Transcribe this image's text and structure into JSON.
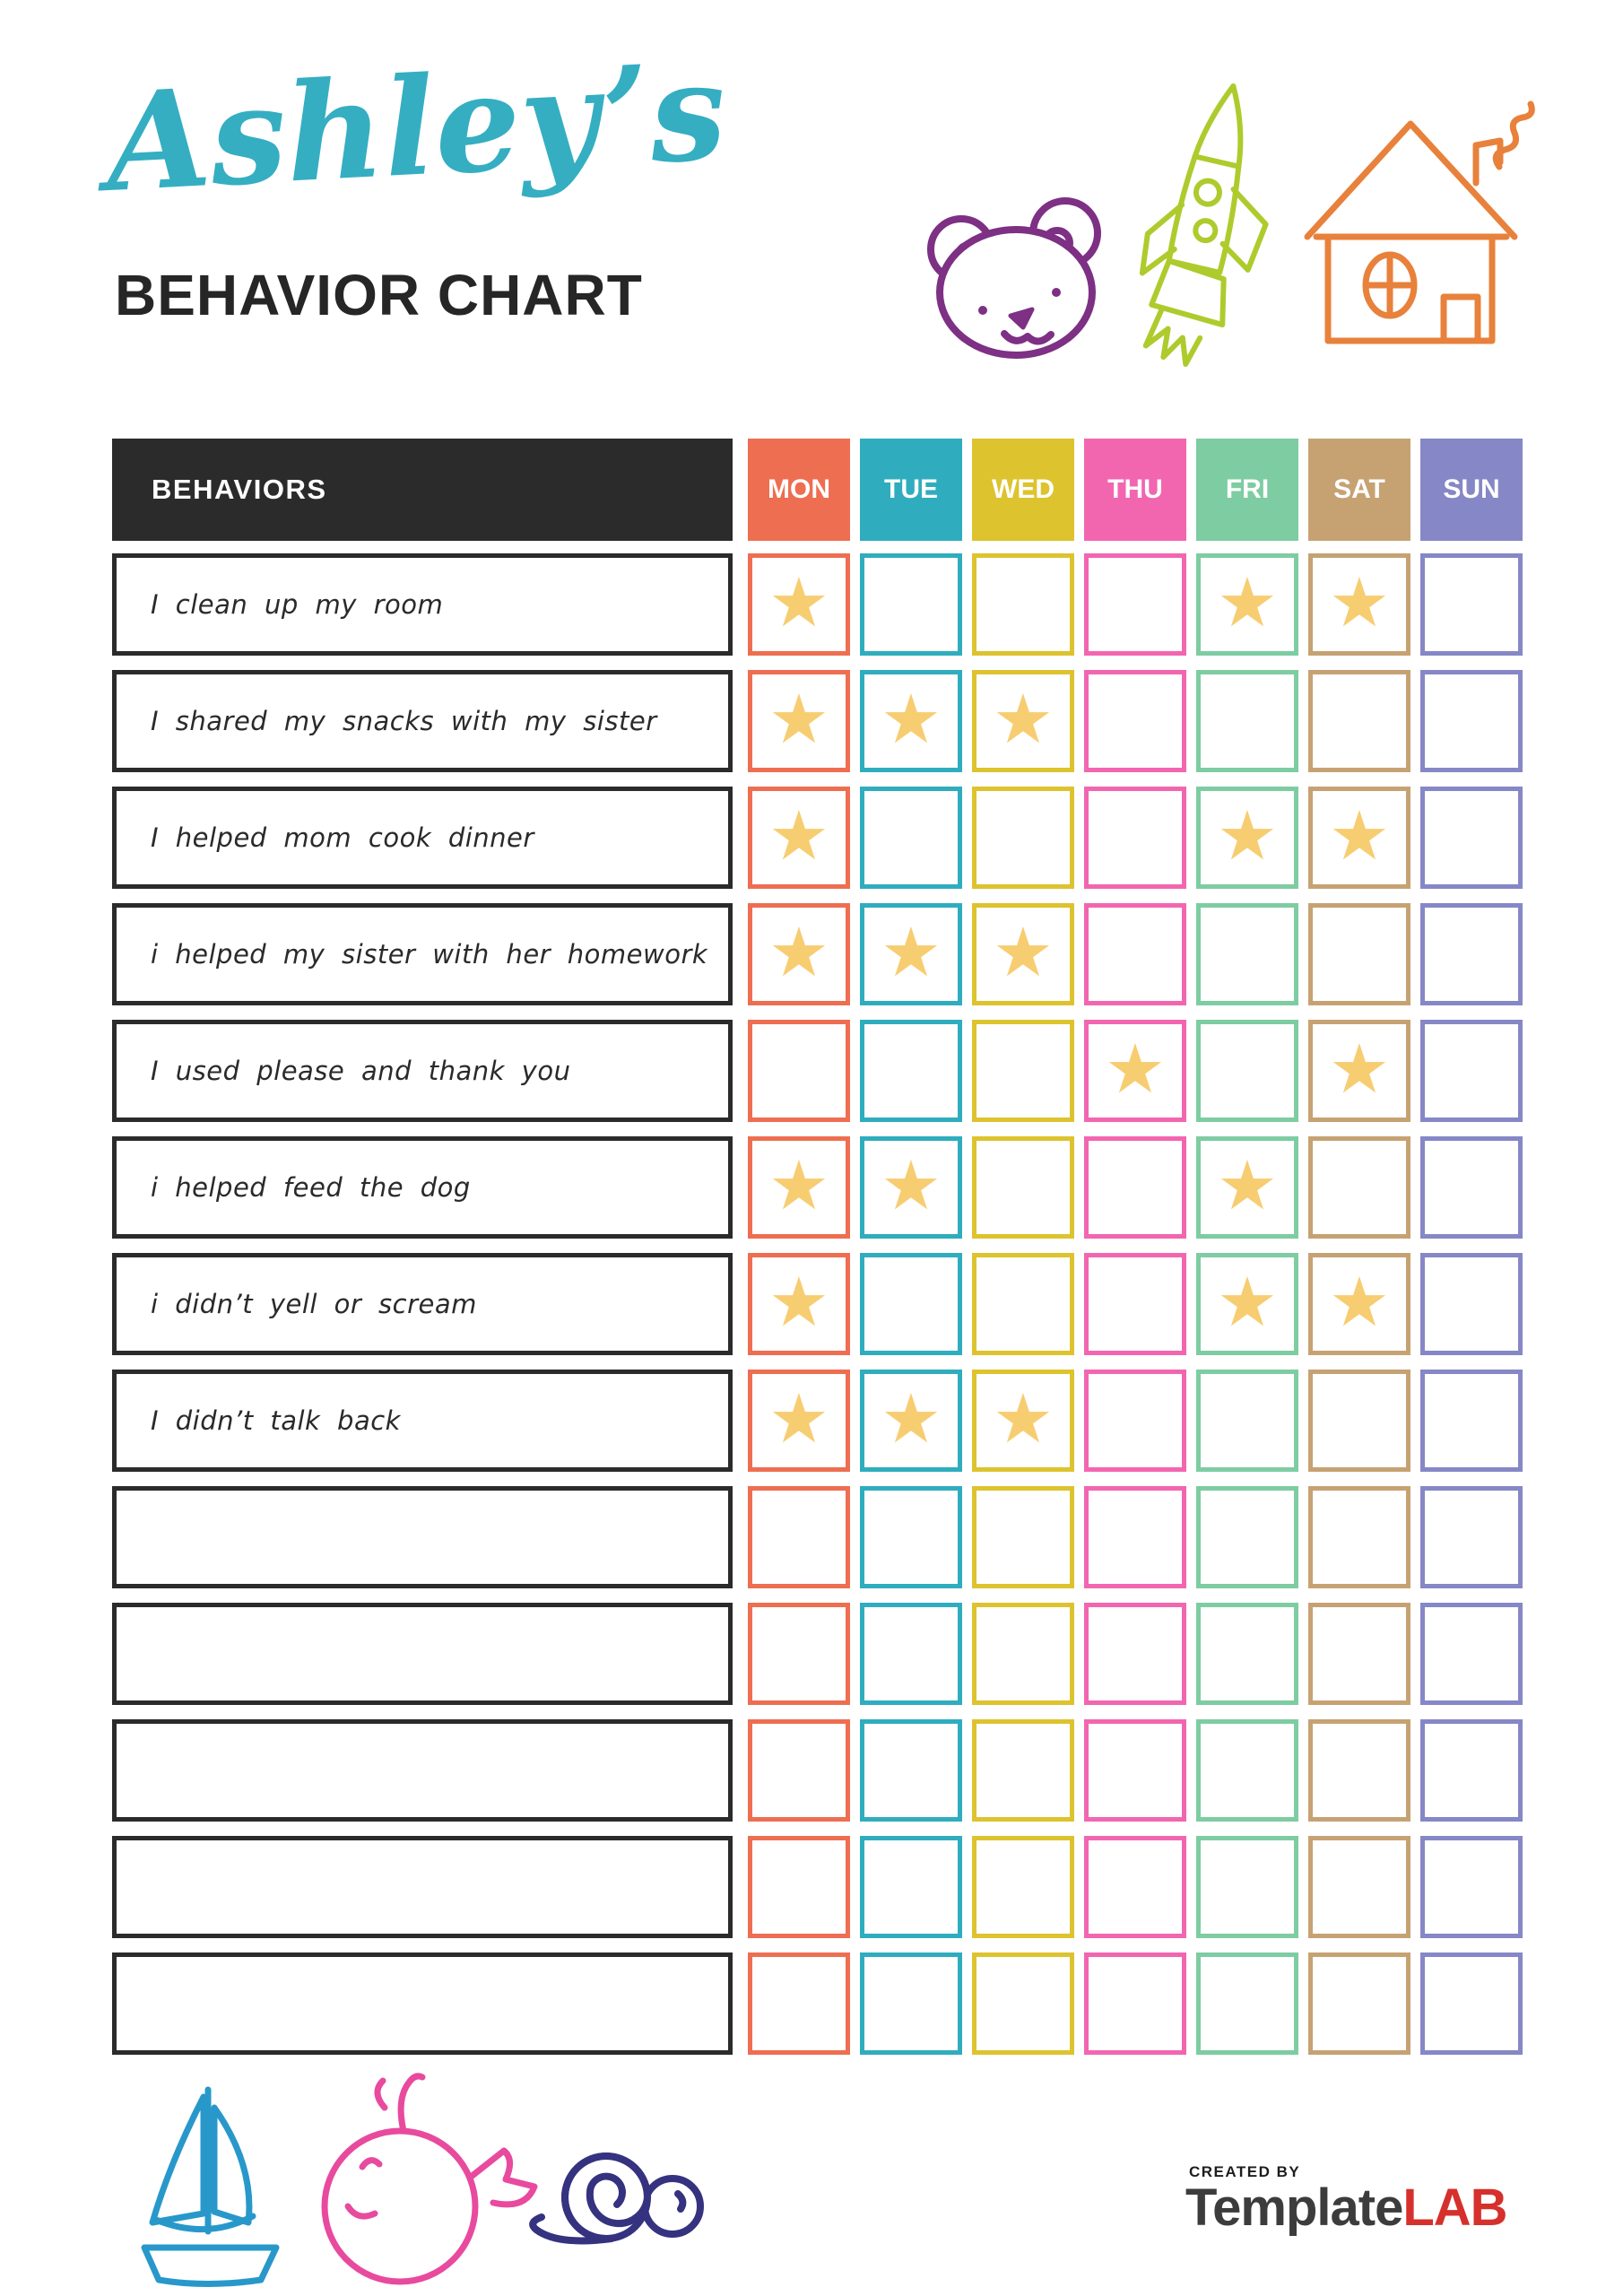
{
  "header": {
    "name_title": "Ashley’s",
    "subtitle": "BEHAVIOR CHART"
  },
  "table": {
    "behaviors_header": "BEHAVIORS",
    "days": [
      {
        "label": "MON",
        "color": "#ee6e51"
      },
      {
        "label": "TUE",
        "color": "#2fadbe"
      },
      {
        "label": "WED",
        "color": "#ddc32e"
      },
      {
        "label": "THU",
        "color": "#f266b0"
      },
      {
        "label": "FRI",
        "color": "#7ecca2"
      },
      {
        "label": "SAT",
        "color": "#c6a273"
      },
      {
        "label": "SUN",
        "color": "#8687c6"
      }
    ],
    "star_glyph": "★",
    "star_color": "#f7cd71",
    "rows": [
      {
        "behavior": "I clean up my room",
        "stars": [
          "MON",
          "FRI",
          "SAT"
        ]
      },
      {
        "behavior": "I shared my snacks with my sister",
        "stars": [
          "MON",
          "TUE",
          "WED"
        ]
      },
      {
        "behavior": "I helped mom cook dinner",
        "stars": [
          "MON",
          "FRI",
          "SAT"
        ]
      },
      {
        "behavior": "i helped my sister with her homework",
        "stars": [
          "MON",
          "TUE",
          "WED"
        ]
      },
      {
        "behavior": "I used please and thank you",
        "stars": [
          "THU",
          "SAT"
        ]
      },
      {
        "behavior": "i helped feed the dog",
        "stars": [
          "MON",
          "TUE",
          "FRI"
        ]
      },
      {
        "behavior": "i didn’t yell or scream",
        "stars": [
          "MON",
          "FRI",
          "SAT"
        ]
      },
      {
        "behavior": "I didn’t talk back",
        "stars": [
          "MON",
          "TUE",
          "WED"
        ]
      },
      {
        "behavior": "",
        "stars": []
      },
      {
        "behavior": "",
        "stars": []
      },
      {
        "behavior": "",
        "stars": []
      },
      {
        "behavior": "",
        "stars": []
      },
      {
        "behavior": "",
        "stars": []
      }
    ]
  },
  "footer": {
    "created_by": "CREATED BY",
    "brand_part1": "Template",
    "brand_part2": "LAB"
  },
  "colors": {
    "title_script": "#35aec2",
    "title_main": "#262626",
    "behaviors_header_bg": "#2b2b2b",
    "brand_dark": "#3c3c3c",
    "brand_red": "#d6302c"
  },
  "decorations": {
    "bear_color": "#7d3084",
    "rocket_color": "#aecb2d",
    "house_color": "#e8813b",
    "boat_color": "#2898cb",
    "whale_color": "#e84a9e",
    "snail_color": "#35327f"
  }
}
